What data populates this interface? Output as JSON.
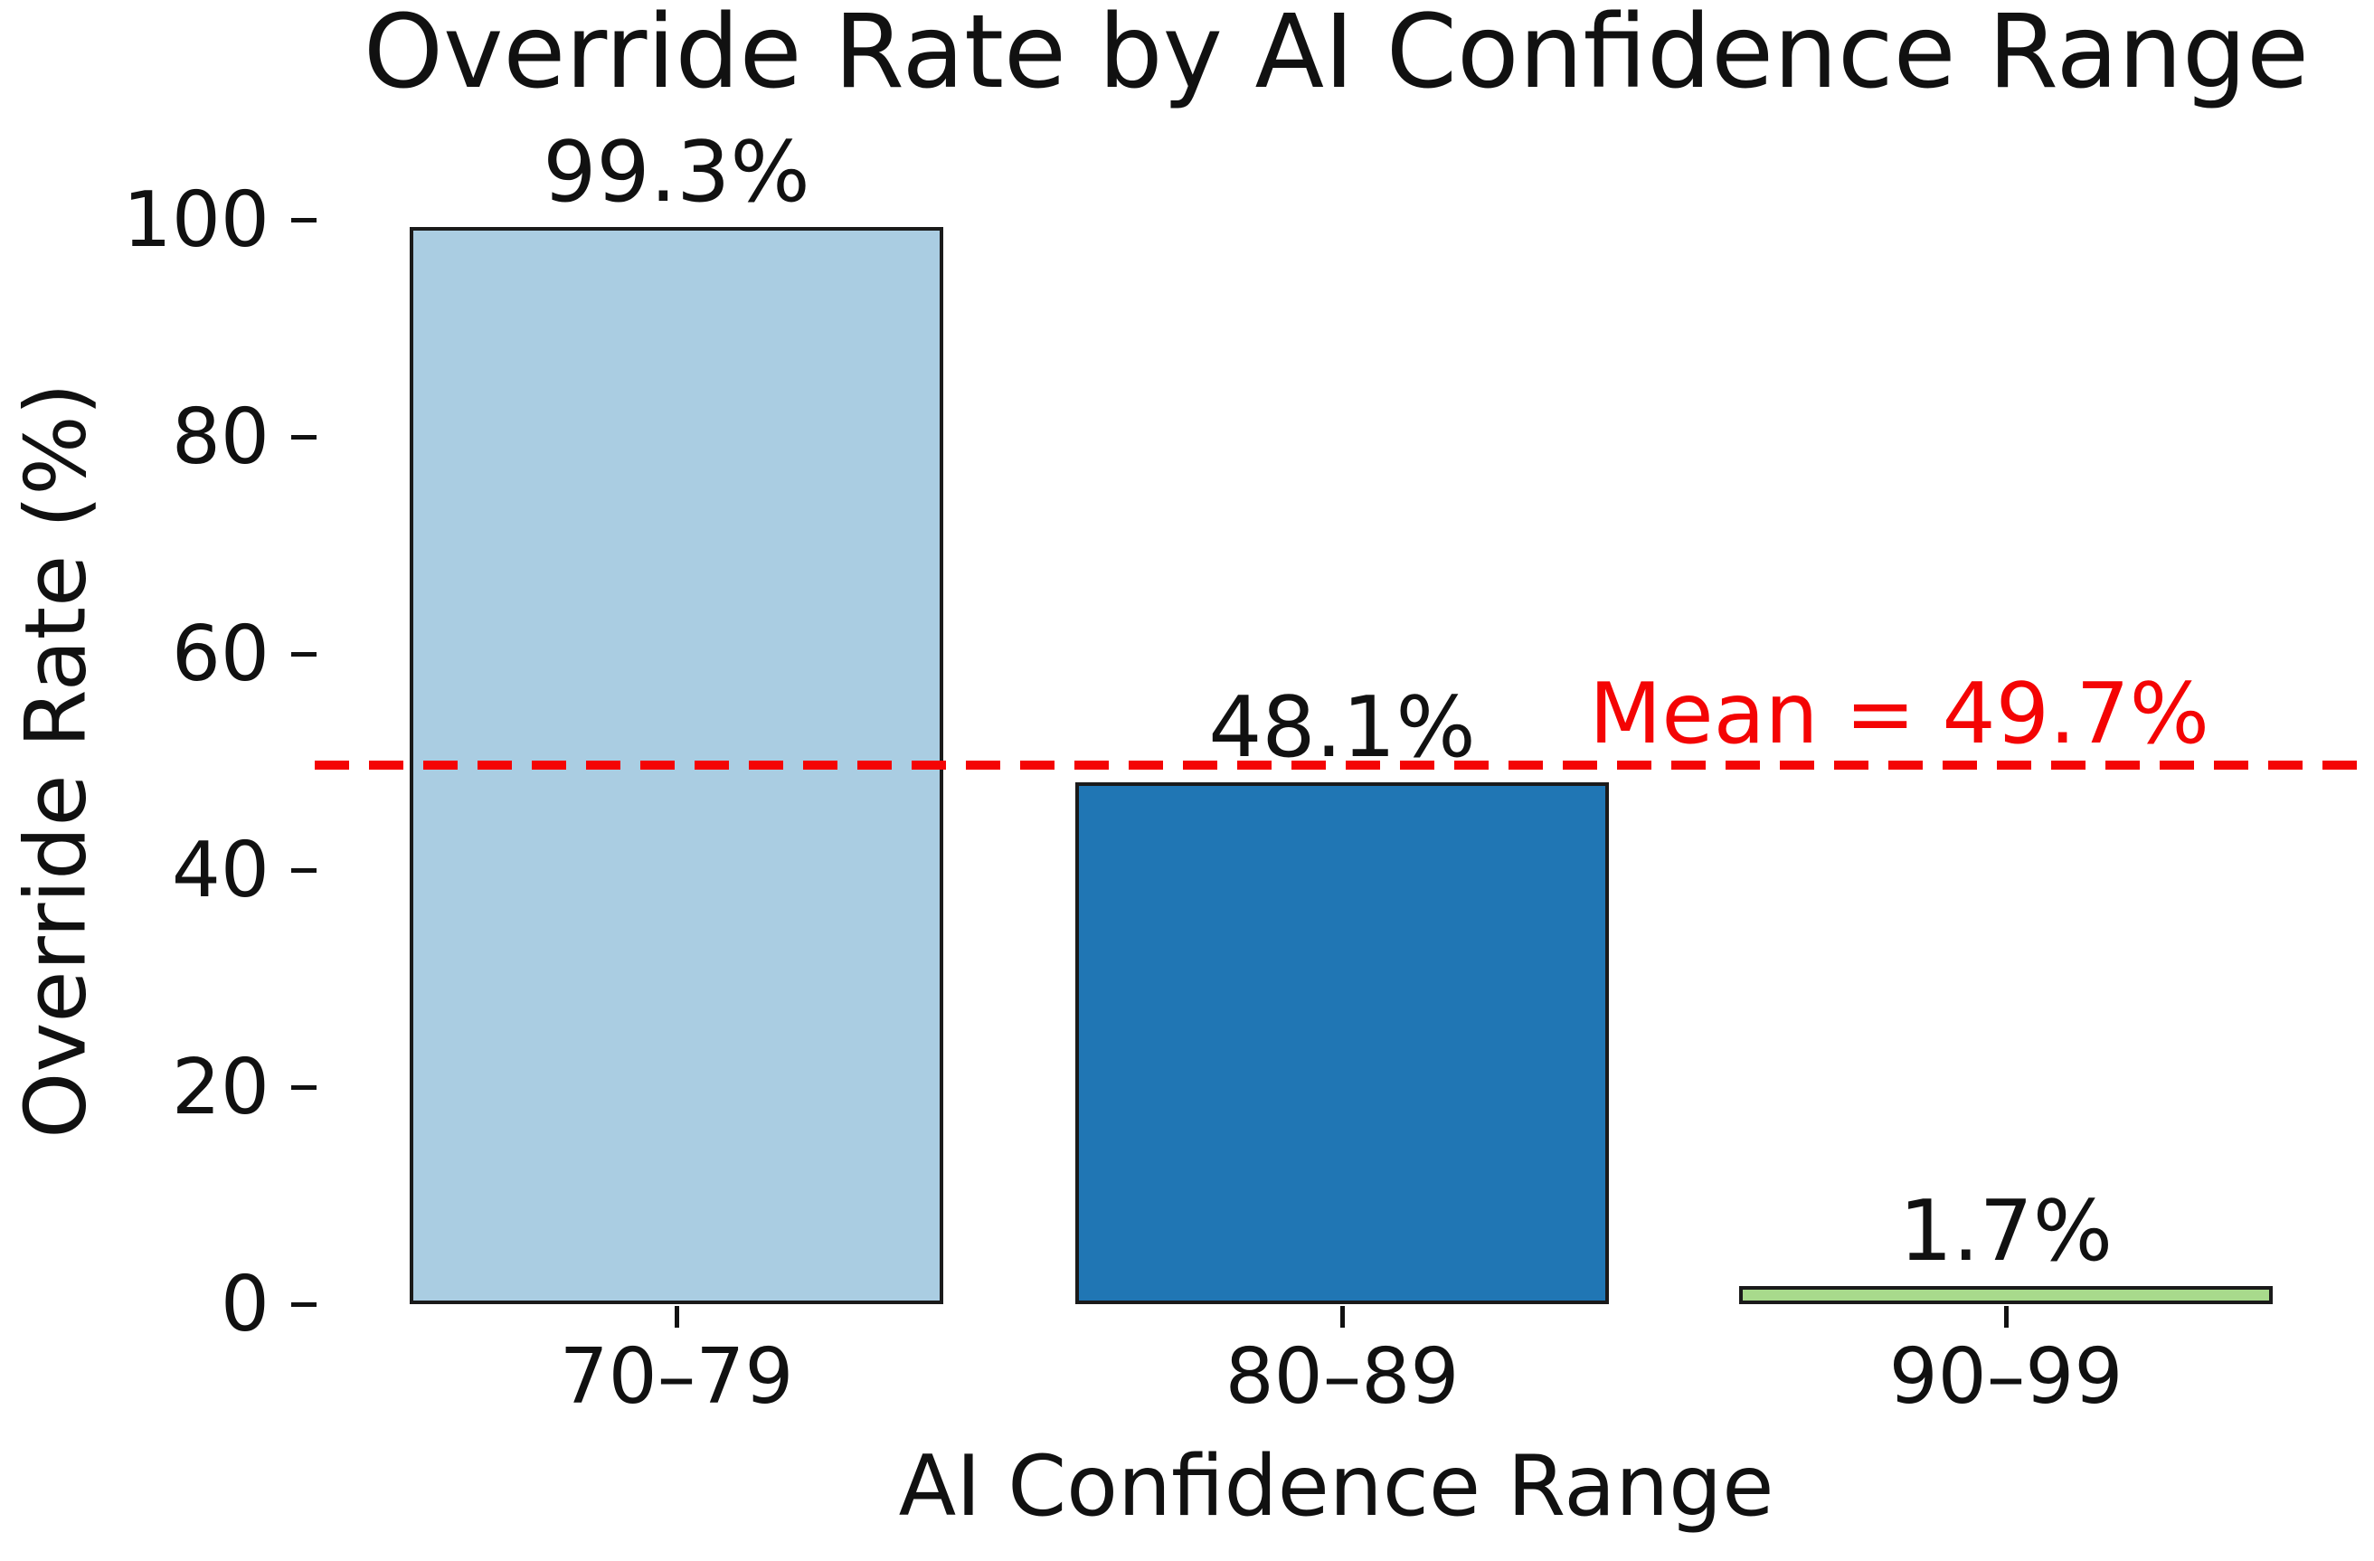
{
  "chart_data": {
    "type": "bar",
    "title": "Override Rate by AI Confidence Range",
    "xlabel": "AI Confidence Range",
    "ylabel": "Override Rate (%)",
    "categories": [
      "70–79",
      "80–89",
      "90–99"
    ],
    "values": [
      99.3,
      48.1,
      1.7
    ],
    "value_labels": [
      "99.3%",
      "48.1%",
      "1.7%"
    ],
    "bar_colors": [
      "#aacde2",
      "#2076b4",
      "#a8da8c"
    ],
    "bar_edge_color": "#1a1a1a",
    "ylim": [
      0,
      100
    ],
    "yticks": [
      0,
      20,
      40,
      60,
      80,
      100
    ],
    "grid": false,
    "legend_position": "none",
    "background_color": "#ffffff",
    "mean_line": {
      "value": 49.7,
      "label": "Mean = 49.7%",
      "color": "#f40404",
      "style": "dashed"
    }
  }
}
